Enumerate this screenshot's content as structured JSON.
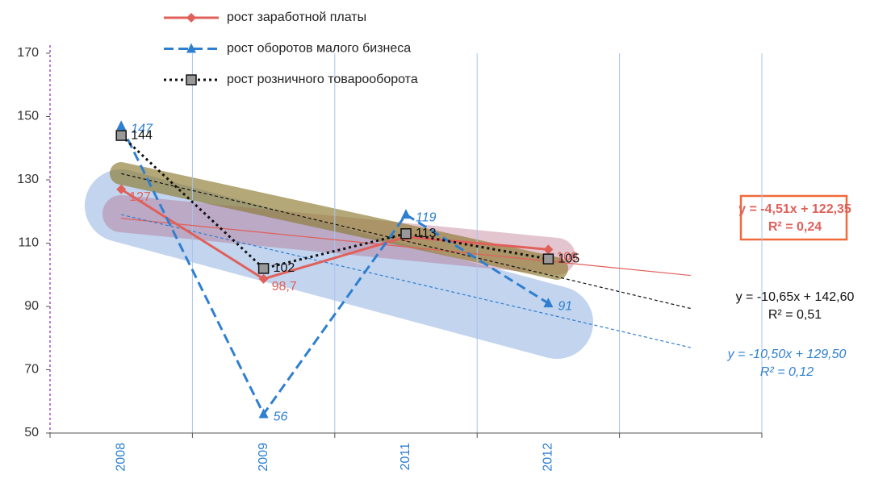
{
  "chart_data": {
    "type": "line",
    "categories": [
      "2008",
      "2009",
      "2011",
      "2012",
      null
    ],
    "ylim": [
      50,
      170
    ],
    "yticks": [
      50,
      70,
      90,
      110,
      130,
      150,
      170
    ],
    "grid": true,
    "legend": "top",
    "series": [
      {
        "name": "рост заработной платы",
        "color": "#e0605a",
        "dash": "solid",
        "marker": "diamond",
        "values": [
          127,
          98.7,
          112,
          108,
          null
        ],
        "value_labels": [
          "127",
          "98,7",
          null,
          "108",
          null
        ],
        "trendline": {
          "slope": -4.51,
          "intercept": 122.35,
          "equation": "y = -4,51x + 122,35",
          "r2": "R² = 0,24"
        }
      },
      {
        "name": "рост оборотов малого бизнеса",
        "color": "#2e7fd0",
        "dash": "dashed",
        "marker": "triangle",
        "values": [
          147,
          56,
          119,
          91,
          null
        ],
        "value_labels": [
          "147",
          "56",
          "119",
          "91",
          null
        ],
        "trendline": {
          "slope": -10.5,
          "intercept": 129.5,
          "equation": "y = -10,50x + 129,50",
          "r2": "R² = 0,12"
        }
      },
      {
        "name": "рост розничного товарооборота",
        "color": "#111111",
        "dash": "dotted",
        "marker": "square",
        "values": [
          144,
          102,
          113,
          105,
          null
        ],
        "value_labels": [
          "144",
          "102",
          "113",
          "105",
          null
        ],
        "trendline": {
          "slope": -10.65,
          "intercept": 142.6,
          "equation": "y = -10,65x + 142,60",
          "r2": "R² = 0,51"
        }
      }
    ]
  }
}
